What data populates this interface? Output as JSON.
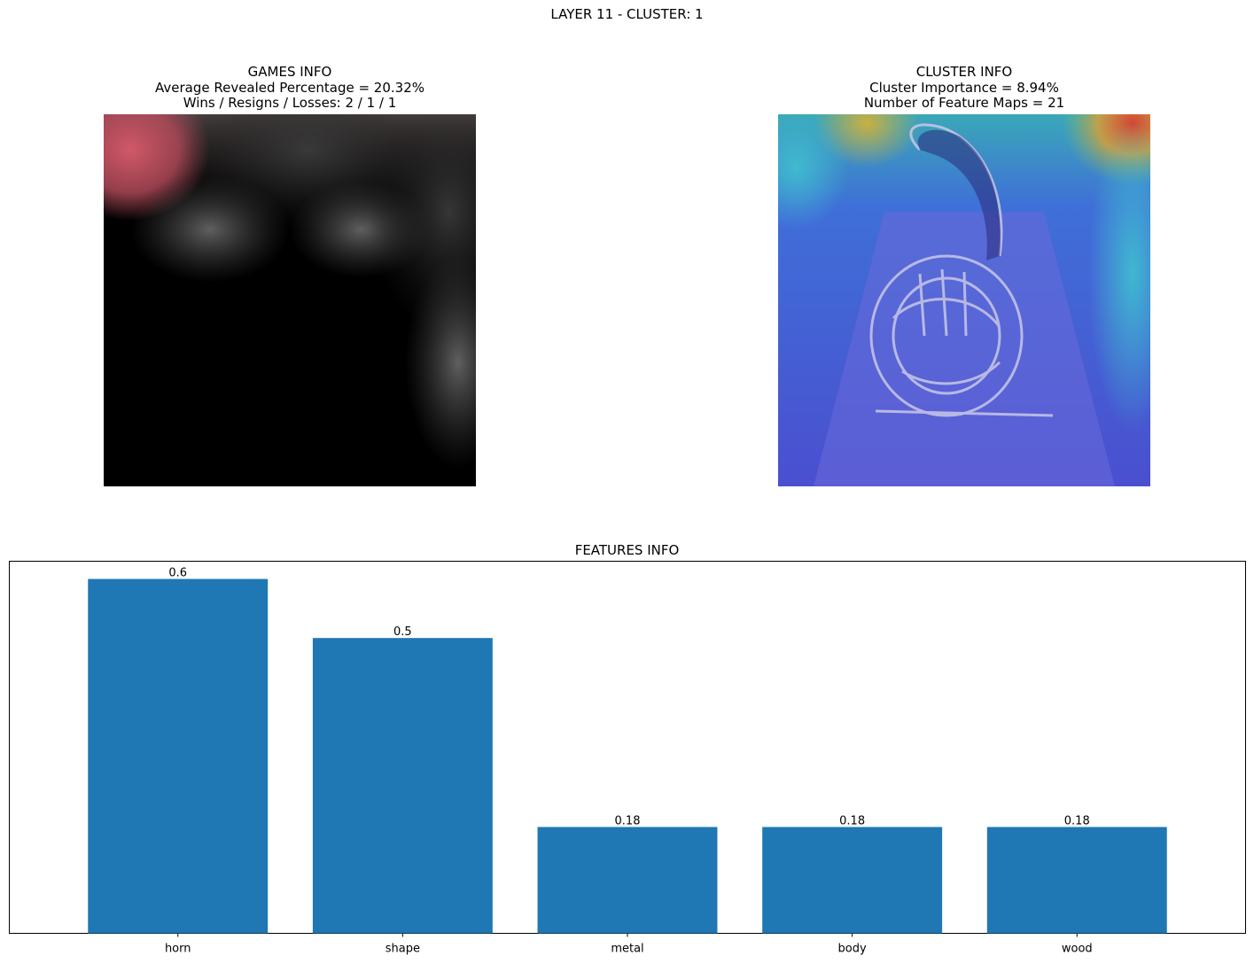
{
  "suptitle": "LAYER 11 - CLUSTER: 1",
  "games_info": {
    "title": "GAMES INFO",
    "line1": "Average Revealed Percentage = 20.32%",
    "line2": "Wins / Resigns / Losses: 2 / 1 / 1"
  },
  "cluster_info": {
    "title": "CLUSTER INFO",
    "line1": "Cluster Importance = 8.94%",
    "line2": "Number of Feature Maps = 21"
  },
  "chart_data": {
    "type": "bar",
    "title": "FEATURES INFO",
    "categories": [
      "horn",
      "shape",
      "metal",
      "body",
      "wood"
    ],
    "values": [
      0.6,
      0.5,
      0.18,
      0.18,
      0.18
    ],
    "value_labels": [
      "0.6",
      "0.5",
      "0.18",
      "0.18",
      "0.18"
    ],
    "xlabel": "",
    "ylabel": "",
    "y_axis_visible": false,
    "grid": false,
    "bar_color": "#1f77b4"
  }
}
